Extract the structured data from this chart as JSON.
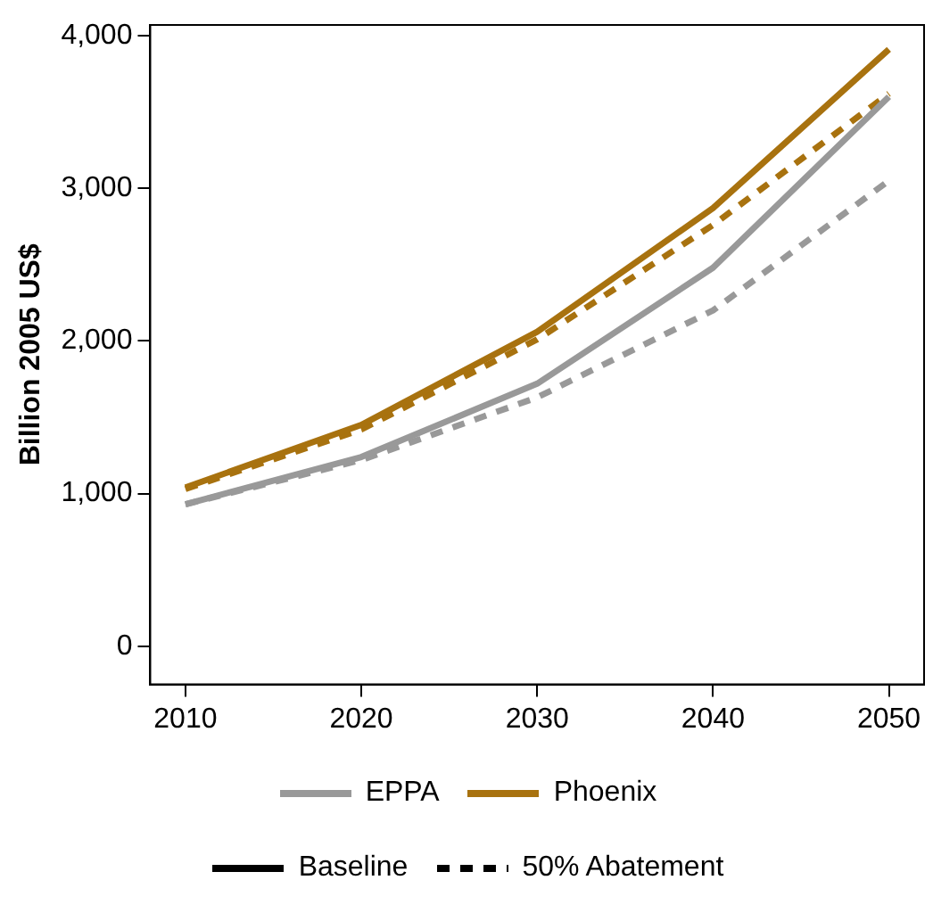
{
  "chart_data": {
    "type": "line",
    "ylabel": "Billion 2005 US$",
    "x": [
      2010,
      2020,
      2030,
      2040,
      2050
    ],
    "series": [
      {
        "name": "EPPA",
        "color": "#999999",
        "line_style": "solid",
        "values": [
          930,
          1240,
          1720,
          2480,
          3600
        ]
      },
      {
        "name": "Phoenix",
        "color": "#a8720f",
        "line_style": "solid",
        "values": [
          1040,
          1450,
          2060,
          2870,
          3910
        ]
      },
      {
        "color": "#999999",
        "line_style": "dashed",
        "values": [
          930,
          1220,
          1630,
          2200,
          3050
        ]
      },
      {
        "color": "#a8720f",
        "line_style": "dashed",
        "values": [
          1030,
          1420,
          2010,
          2760,
          3620
        ]
      }
    ],
    "annotations": [
      "Baseline",
      "50% Abatement"
    ],
    "xlim": [
      2008,
      2052
    ],
    "xticks": [
      2010,
      2020,
      2030,
      2040,
      2050
    ],
    "ylim": [
      -250,
      4070
    ],
    "yticks": [
      0,
      {
        "value": 1000,
        "label": "1,000"
      },
      {
        "value": 2000,
        "label": "2,000"
      },
      {
        "value": 3000,
        "label": "3,000"
      },
      {
        "value": 4000,
        "label": "4,000"
      }
    ],
    "grid": false,
    "legend": "bottom",
    "marker": "none"
  }
}
